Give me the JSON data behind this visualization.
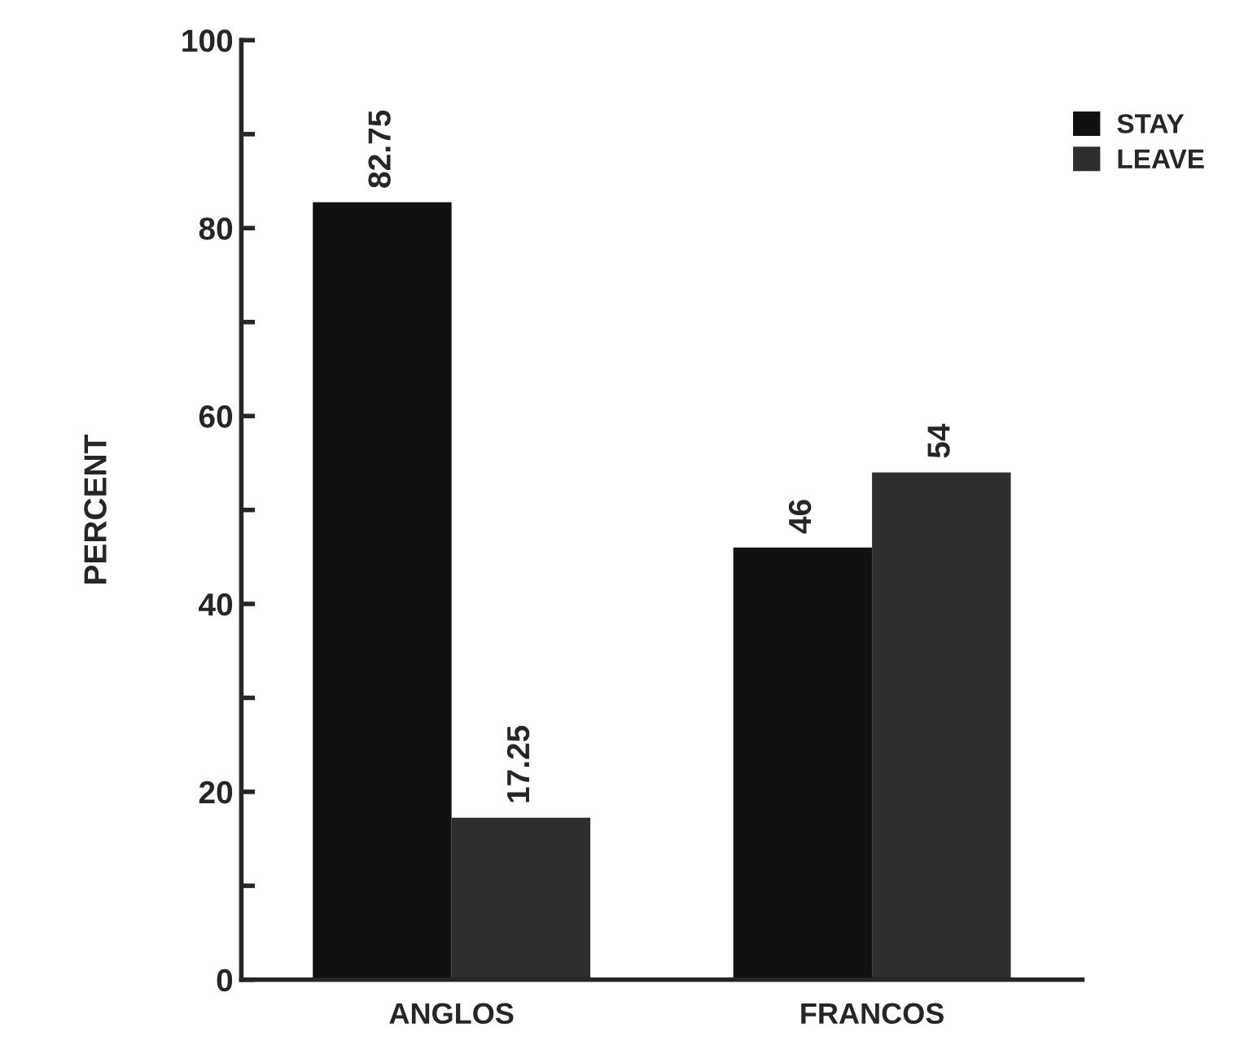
{
  "chart_data": {
    "type": "bar",
    "ylabel": "PERCENT",
    "categories": [
      "ANGLOS",
      "FRANCOS"
    ],
    "series": [
      {
        "name": "STAY",
        "color": "#111111",
        "values": [
          82.75,
          46
        ]
      },
      {
        "name": "LEAVE",
        "color": "#2e2e2e",
        "values": [
          17.25,
          54
        ]
      }
    ],
    "ylim": [
      0,
      100
    ],
    "yticks": [
      0,
      {
        "value": 10,
        "label": null
      },
      20,
      {
        "value": 30,
        "label": null
      },
      40,
      {
        "value": 50,
        "label": null
      },
      60,
      {
        "value": 70,
        "label": null
      },
      80,
      {
        "value": 90,
        "label": null
      },
      100
    ],
    "data_labels": true,
    "legend": "top right",
    "grid": false
  }
}
